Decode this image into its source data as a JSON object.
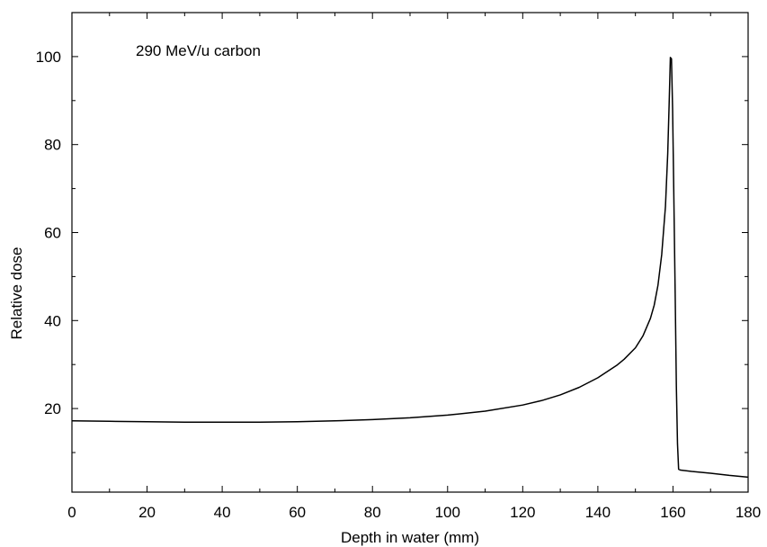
{
  "chart_data": {
    "type": "line",
    "title": "",
    "xlabel": "Depth in water (mm)",
    "ylabel": "Relative dose",
    "xlim": [
      0,
      180
    ],
    "ylim": [
      1,
      110
    ],
    "x_ticks": [
      0,
      20,
      40,
      60,
      80,
      100,
      120,
      140,
      160,
      180
    ],
    "x_tick_labels": [
      "0",
      "20",
      "40",
      "60",
      "80",
      "100",
      "120",
      "140",
      "160",
      "180"
    ],
    "x_minor_step": 10,
    "y_ticks": [
      20,
      40,
      60,
      80,
      100
    ],
    "y_tick_labels": [
      "20",
      "40",
      "60",
      "80",
      "100"
    ],
    "y_minor_step": 10,
    "grid": false,
    "annotations": [
      {
        "text": "290 MeV/u carbon",
        "x": 17,
        "y": 100
      }
    ],
    "series": [
      {
        "color": "#000000",
        "points": [
          [
            0,
            17.2
          ],
          [
            10,
            17.1
          ],
          [
            20,
            17.0
          ],
          [
            30,
            16.9
          ],
          [
            40,
            16.9
          ],
          [
            50,
            16.9
          ],
          [
            60,
            17.0
          ],
          [
            70,
            17.2
          ],
          [
            80,
            17.5
          ],
          [
            90,
            17.9
          ],
          [
            100,
            18.5
          ],
          [
            110,
            19.4
          ],
          [
            120,
            20.8
          ],
          [
            125,
            21.8
          ],
          [
            130,
            23.1
          ],
          [
            135,
            24.8
          ],
          [
            140,
            27.0
          ],
          [
            145,
            29.8
          ],
          [
            147,
            31.2
          ],
          [
            150,
            33.8
          ],
          [
            152,
            36.5
          ],
          [
            154,
            40.5
          ],
          [
            155,
            43.5
          ],
          [
            156,
            48.0
          ],
          [
            157,
            55.0
          ],
          [
            158,
            66.0
          ],
          [
            158.6,
            78.0
          ],
          [
            159.0,
            90.0
          ],
          [
            159.3,
            99.8
          ],
          [
            159.6,
            99.5
          ],
          [
            159.9,
            88.0
          ],
          [
            160.2,
            70.0
          ],
          [
            160.6,
            45.0
          ],
          [
            160.9,
            25.0
          ],
          [
            161.2,
            12.0
          ],
          [
            161.5,
            6.2
          ],
          [
            162,
            6.0
          ],
          [
            165,
            5.7
          ],
          [
            170,
            5.3
          ],
          [
            175,
            4.8
          ],
          [
            180,
            4.4
          ]
        ]
      }
    ]
  }
}
